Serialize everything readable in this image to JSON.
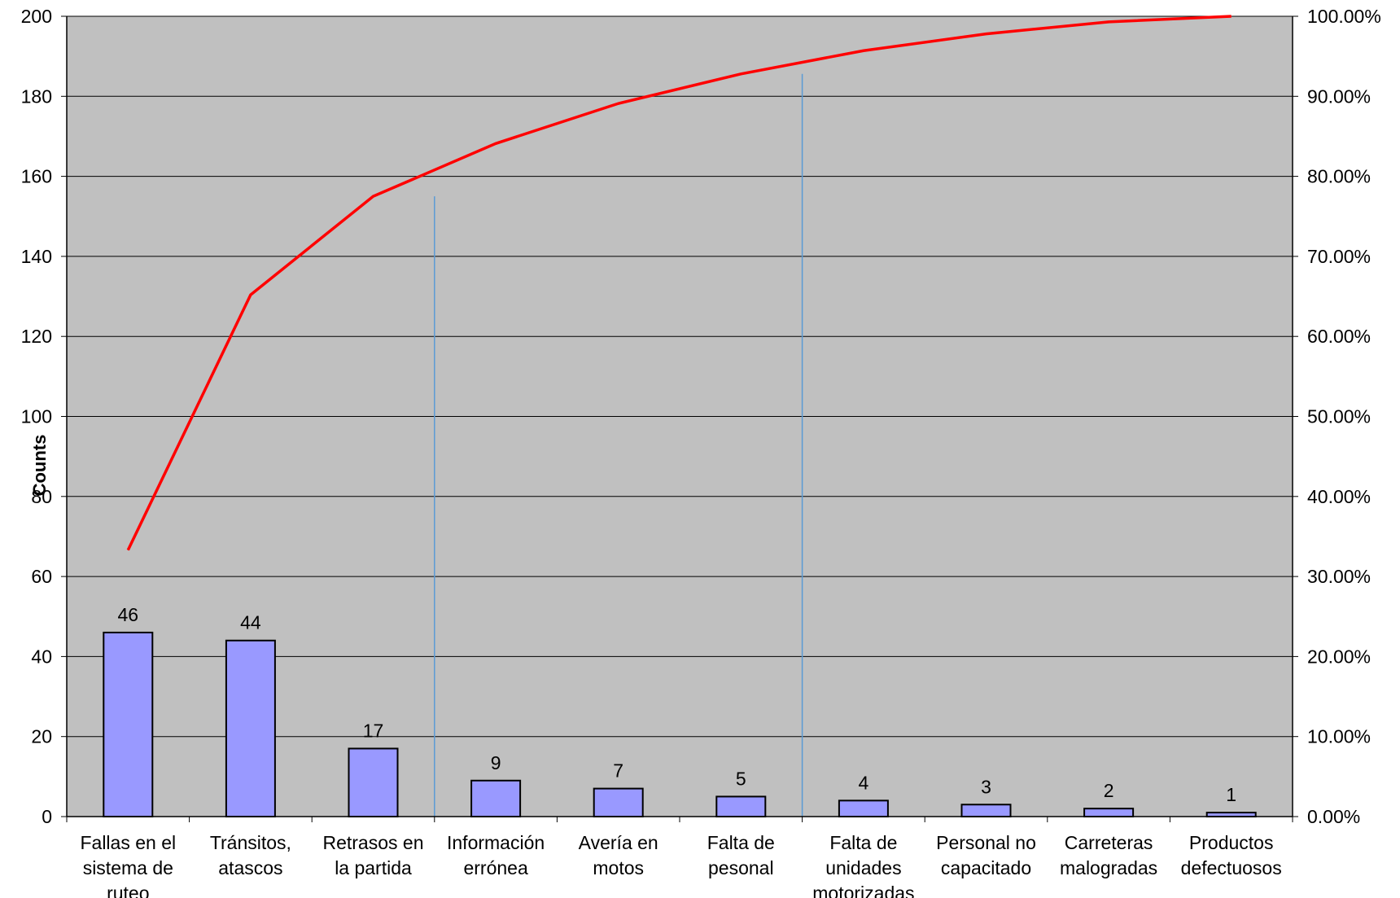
{
  "chart_data": {
    "type": "bar",
    "title": "",
    "xlabel": "",
    "ylabel": "Counts",
    "ylim": [
      0,
      200
    ],
    "y2lim": [
      0,
      100
    ],
    "yticks": [
      "0",
      "20",
      "40",
      "60",
      "80",
      "100",
      "120",
      "140",
      "160",
      "180",
      "200"
    ],
    "y2ticks": [
      "0.00%",
      "10.00%",
      "20.00%",
      "30.00%",
      "40.00%",
      "50.00%",
      "60.00%",
      "70.00%",
      "80.00%",
      "90.00%",
      "100.00%"
    ],
    "categories": [
      "Fallas en el sistema de ruteo",
      "Tránsitos, atascos",
      "Retrasos en la partida",
      "Información errónea",
      "Avería en motos",
      "Falta de pesonal",
      "Falta de unidades motorizadas",
      "Personal no capacitado",
      "Carreteras malogradas",
      "Productos defectuosos"
    ],
    "category_lines": [
      [
        "Fallas en el",
        "sistema de",
        "ruteo"
      ],
      [
        "Tránsitos,",
        "atascos"
      ],
      [
        "Retrasos en",
        "la partida"
      ],
      [
        "Información",
        "errónea"
      ],
      [
        "Avería en",
        "motos"
      ],
      [
        "Falta de",
        "pesonal"
      ],
      [
        "Falta de",
        "unidades",
        "motorizadas"
      ],
      [
        "Personal no",
        "capacitado"
      ],
      [
        "Carreteras",
        "malogradas"
      ],
      [
        "Productos",
        "defectuosos"
      ]
    ],
    "series": [
      {
        "type": "bar",
        "values": [
          46,
          44,
          17,
          9,
          7,
          5,
          4,
          3,
          2,
          1
        ]
      },
      {
        "type": "line",
        "axis": "secondary",
        "values": [
          33.3,
          65.2,
          77.5,
          84.1,
          89.1,
          92.8,
          95.7,
          97.8,
          99.3,
          100.0
        ]
      }
    ],
    "data_labels": [
      "46",
      "44",
      "17",
      "9",
      "7",
      "5",
      "4",
      "3",
      "2",
      "1"
    ],
    "reference_lines_after_category": [
      3,
      6
    ],
    "grid": true,
    "legend": "none",
    "colors": {
      "plot_background": "#c0c0c0",
      "bar_fill": "#9999ff",
      "bar_stroke": "#000000",
      "line": "#ff0000",
      "reference_line": "#5b9bd5",
      "gridline": "#000000"
    }
  }
}
